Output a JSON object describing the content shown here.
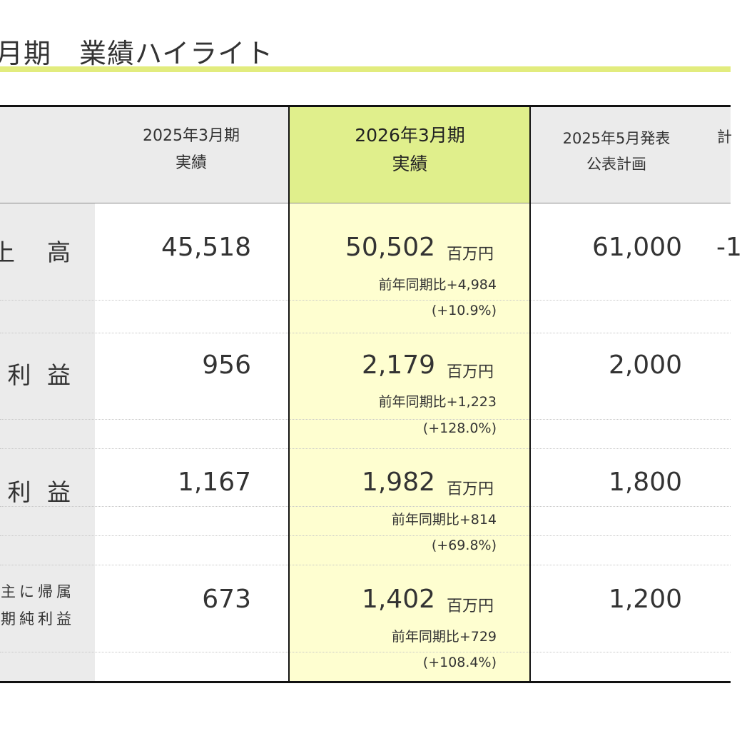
{
  "title": "月期　業績ハイライト",
  "columns": {
    "prev": {
      "line1": "2025年3月期",
      "line2": "実績"
    },
    "current": {
      "line1": "2026年3月期",
      "line2": "実績"
    },
    "plan": {
      "line1": "2025年5月発表",
      "line2": "公表計画"
    },
    "extra": "計"
  },
  "unit": "百万円",
  "rows": [
    {
      "label": "上　高",
      "prev": "45,518",
      "current": "50,502",
      "diff": "前年同期比+4,984",
      "pct": "(+10.9%)",
      "plan": "61,000",
      "extra": "-1"
    },
    {
      "label": "利 益",
      "prev": "956",
      "current": "2,179",
      "diff": "前年同期比+1,223",
      "pct": "(+128.0%)",
      "plan": "2,000"
    },
    {
      "label": "利 益",
      "prev": "1,167",
      "current": "1,982",
      "diff": "前年同期比+814",
      "pct": "(+69.8%)",
      "plan": "1,800"
    },
    {
      "label_line1": "主に帰属",
      "label_line2": "期純利益",
      "prev": "673",
      "current": "1,402",
      "diff": "前年同期比+729",
      "pct": "(+108.4%)",
      "plan": "1,200"
    }
  ]
}
